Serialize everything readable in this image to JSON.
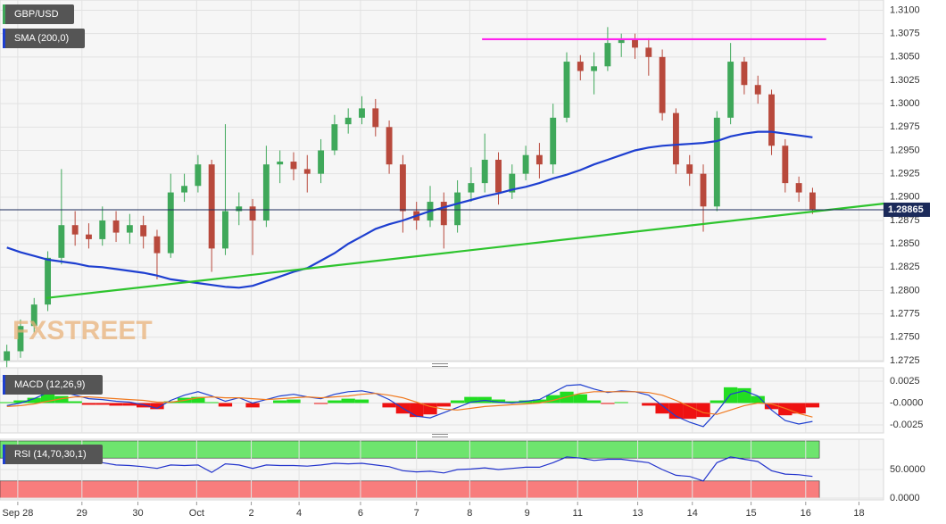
{
  "chart_data": [
    {
      "type": "candlestick",
      "title": "GBP/USD",
      "watermark": "FXSTREET",
      "up_color": "#3fa85a",
      "down_color": "#b8493c",
      "opens": [
        1.2725,
        1.2735,
        1.2762,
        1.2785,
        1.2835,
        1.287,
        1.286,
        1.2855,
        1.2875,
        1.2862,
        1.287,
        1.2858,
        1.284,
        1.2905,
        1.2912,
        1.2935,
        1.2845,
        1.2885,
        1.289,
        1.2875,
        1.2935,
        1.2938,
        1.293,
        1.2925,
        1.295,
        1.2978,
        1.2985,
        1.2995,
        1.2975,
        1.2935,
        1.2885,
        1.2875,
        1.2895,
        1.287,
        1.2905,
        1.2915,
        1.294,
        1.2905,
        1.2925,
        1.2945,
        1.2935,
        1.2985,
        1.3045,
        1.3035,
        1.304,
        1.3065,
        1.3068,
        1.306,
        1.305,
        1.299,
        1.2935,
        1.2925,
        1.289,
        1.2985,
        1.3045,
        1.302,
        1.301,
        1.2955,
        1.2915,
        1.2905
      ],
      "highs": [
        1.2742,
        1.2769,
        1.2792,
        1.2842,
        1.293,
        1.2885,
        1.2872,
        1.289,
        1.2885,
        1.2882,
        1.288,
        1.2865,
        1.2925,
        1.2925,
        1.2945,
        1.294,
        1.2978,
        1.2905,
        1.2898,
        1.2955,
        1.295,
        1.2948,
        1.2945,
        1.2962,
        1.2988,
        1.2995,
        1.3008,
        1.3005,
        1.2982,
        1.2945,
        1.2895,
        1.2912,
        1.2905,
        1.2918,
        1.2932,
        1.2968,
        1.2948,
        1.2935,
        1.2955,
        1.2958,
        1.3,
        1.3055,
        1.3052,
        1.3055,
        1.3082,
        1.3075,
        1.3075,
        1.307,
        1.3058,
        1.2995,
        1.2945,
        1.2935,
        1.2992,
        1.3065,
        1.305,
        1.303,
        1.3015,
        1.2962,
        1.2922,
        1.291
      ],
      "lows": [
        1.2718,
        1.2728,
        1.2755,
        1.2778,
        1.2828,
        1.2848,
        1.2845,
        1.2848,
        1.2852,
        1.285,
        1.2845,
        1.2812,
        1.2835,
        1.2895,
        1.2905,
        1.282,
        1.2838,
        1.287,
        1.2838,
        1.2868,
        1.2915,
        1.2918,
        1.2905,
        1.2915,
        1.2945,
        1.2968,
        1.2978,
        1.2965,
        1.2925,
        1.2862,
        1.2865,
        1.2868,
        1.2845,
        1.2862,
        1.2895,
        1.2905,
        1.2892,
        1.2898,
        1.2918,
        1.292,
        1.2925,
        1.298,
        1.3025,
        1.301,
        1.3035,
        1.305,
        1.3048,
        1.303,
        1.2982,
        1.2925,
        1.2912,
        1.2863,
        1.2885,
        1.2978,
        1.301,
        1.3,
        1.2945,
        1.2905,
        1.2895,
        1.2882
      ],
      "closes": [
        1.2735,
        1.2762,
        1.2785,
        1.2835,
        1.287,
        1.286,
        1.2855,
        1.2875,
        1.2862,
        1.287,
        1.2858,
        1.284,
        1.2905,
        1.2912,
        1.2935,
        1.2845,
        1.2885,
        1.289,
        1.2875,
        1.2935,
        1.2938,
        1.293,
        1.2925,
        1.295,
        1.2978,
        1.2985,
        1.2995,
        1.2975,
        1.2935,
        1.2885,
        1.2875,
        1.2895,
        1.287,
        1.2905,
        1.2915,
        1.294,
        1.2905,
        1.2925,
        1.2945,
        1.2935,
        1.2985,
        1.3045,
        1.3035,
        1.304,
        1.3065,
        1.3068,
        1.306,
        1.305,
        1.299,
        1.2935,
        1.2925,
        1.289,
        1.2985,
        1.3045,
        1.302,
        1.301,
        1.2955,
        1.2915,
        1.2905,
        1.2887
      ],
      "series": [
        {
          "name": "SMA (200,0)",
          "color": "#1e3fd0",
          "values": [
            1.2846,
            1.2841,
            1.2837,
            1.2833,
            1.2831,
            1.2829,
            1.2826,
            1.2825,
            1.2823,
            1.2821,
            1.2819,
            1.2816,
            1.2812,
            1.281,
            1.2808,
            1.2806,
            1.2804,
            1.2803,
            1.2805,
            1.281,
            1.2815,
            1.282,
            1.2824,
            1.2832,
            1.284,
            1.285,
            1.2858,
            1.2866,
            1.2871,
            1.2875,
            1.288,
            1.2885,
            1.2889,
            1.2893,
            1.2897,
            1.2901,
            1.2904,
            1.2908,
            1.2911,
            1.2915,
            1.292,
            1.2924,
            1.2929,
            1.2935,
            1.294,
            1.2945,
            1.295,
            1.2953,
            1.2955,
            1.2956,
            1.2957,
            1.2958,
            1.296,
            1.2965,
            1.2968,
            1.297,
            1.297,
            1.2968,
            1.2966,
            1.2964
          ]
        }
      ],
      "lines": [
        {
          "x": [
            3.4,
            64.7
          ],
          "y": [
            1.2792,
            1.2893
          ],
          "color": "#2ec42e"
        },
        {
          "x": [
            35.3,
            60.5
          ],
          "y": [
            1.3069,
            1.3069
          ],
          "color": "#ff22ee"
        }
      ],
      "last_price": 1.28865,
      "xlim": [
        0,
        64.7
      ],
      "ylim": [
        1.2724,
        1.3111
      ],
      "yticks": [
        {
          "value": 1.2725,
          "label": "1.2725"
        },
        {
          "value": 1.275,
          "label": "1.2750"
        },
        {
          "value": 1.2775,
          "label": "1.2775"
        },
        {
          "value": 1.28,
          "label": "1.2800"
        },
        {
          "value": 1.2825,
          "label": "1.2825"
        },
        {
          "value": 1.285,
          "label": "1.2850"
        },
        {
          "value": 1.2875,
          "label": "1.2875"
        },
        {
          "value": 1.29,
          "label": "1.2900"
        },
        {
          "value": 1.2925,
          "label": "1.2925"
        },
        {
          "value": 1.295,
          "label": "1.2950"
        },
        {
          "value": 1.2975,
          "label": "1.2975"
        },
        {
          "value": 1.3,
          "label": "1.3000"
        },
        {
          "value": 1.3025,
          "label": "1.3025"
        },
        {
          "value": 1.305,
          "label": "1.3050"
        },
        {
          "value": 1.3075,
          "label": "1.3075"
        },
        {
          "value": 1.31,
          "label": "1.3100"
        }
      ],
      "grid": true
    },
    {
      "type": "macd",
      "title": "MACD (12,26,9)",
      "histogram": {
        "up_color": "#22dd22",
        "down_color": "#ee1111",
        "values": [
          0.0001,
          0.0003,
          0.0006,
          0.001,
          0.0008,
          0.0002,
          -0.0002,
          -0.0002,
          -0.0003,
          -0.0003,
          -0.0005,
          -0.0007,
          0.0002,
          0.0006,
          0.0007,
          0.0001,
          -0.0004,
          0.0,
          -0.0005,
          0.0,
          0.0003,
          0.0004,
          0.0,
          -0.0001,
          0.0003,
          0.0005,
          0.0004,
          0.0,
          -0.0005,
          -0.0012,
          -0.0016,
          -0.0013,
          -0.0004,
          0.0003,
          0.0007,
          0.0007,
          0.0004,
          0.0002,
          0.0003,
          0.0004,
          0.0009,
          0.0013,
          0.001,
          0.0003,
          -0.0001,
          0.0001,
          0.0,
          -0.0003,
          -0.0012,
          -0.0018,
          -0.0018,
          -0.0016,
          0.0003,
          0.0018,
          0.0017,
          0.0008,
          -0.0007,
          -0.0014,
          -0.0012,
          -0.0005
        ]
      },
      "series": [
        {
          "color": "#1e3fd0",
          "values": [
            -0.0003,
            0.0,
            0.0005,
            0.0012,
            0.0013,
            0.0009,
            0.0005,
            0.0004,
            0.0002,
            0.0001,
            -0.0002,
            -0.0006,
            0.0003,
            0.0009,
            0.0013,
            0.0008,
            0.0002,
            0.0006,
            0.0,
            0.0004,
            0.0008,
            0.001,
            0.0007,
            0.0005,
            0.001,
            0.0013,
            0.0014,
            0.0011,
            0.0004,
            -0.0006,
            -0.0015,
            -0.0017,
            -0.0011,
            -0.0005,
            0.0001,
            0.0003,
            0.0001,
            0.0,
            0.0002,
            0.0004,
            0.0012,
            0.002,
            0.0021,
            0.0016,
            0.0012,
            0.0014,
            0.0013,
            0.0009,
            -0.0003,
            -0.0015,
            -0.0022,
            -0.0027,
            -0.001,
            0.001,
            0.0014,
            0.0008,
            -0.0008,
            -0.002,
            -0.0024,
            -0.0021
          ]
        },
        {
          "color": "#f07a20",
          "values": [
            -0.0004,
            -0.0003,
            -0.0001,
            0.0002,
            0.0005,
            0.0007,
            0.0007,
            0.0006,
            0.0005,
            0.0004,
            0.0003,
            0.0001,
            0.0001,
            0.0003,
            0.0006,
            0.0007,
            0.0006,
            0.0006,
            0.0005,
            0.0004,
            0.0005,
            0.0006,
            0.0007,
            0.0006,
            0.0007,
            0.0008,
            0.001,
            0.0011,
            0.0009,
            0.0006,
            0.0001,
            -0.0004,
            -0.0007,
            -0.0008,
            -0.0006,
            -0.0004,
            -0.0003,
            -0.0002,
            -0.0001,
            0.0,
            0.0003,
            0.0007,
            0.0011,
            0.0013,
            0.0013,
            0.0013,
            0.0013,
            0.0012,
            0.0009,
            0.0003,
            -0.0004,
            -0.0011,
            -0.0013,
            -0.0008,
            -0.0003,
            0.0,
            -0.0001,
            -0.0006,
            -0.0012,
            -0.0016
          ]
        }
      ],
      "xlim": [
        0,
        64.7
      ],
      "ylim": [
        -0.00342,
        0.00403
      ],
      "yticks": [
        {
          "value": -0.0025,
          "label": "-0.0025"
        },
        {
          "value": 0,
          "label": "-0.0000"
        },
        {
          "value": 0.0025,
          "label": "0.0025"
        }
      ],
      "grid": true
    },
    {
      "type": "line",
      "title": "RSI (14,70,30,1)",
      "bands": [
        {
          "from": 70,
          "to": 100,
          "color": "#6ee46e"
        },
        {
          "from": 0,
          "to": 30,
          "color": "#f87d7d"
        }
      ],
      "series": [
        {
          "color": "#2233cc",
          "values": [
            62,
            63,
            64,
            63,
            62,
            62,
            63,
            62,
            58,
            57,
            55,
            52,
            58,
            57,
            58,
            45,
            60,
            58,
            52,
            58,
            57,
            57,
            56,
            58,
            61,
            60,
            61,
            58,
            55,
            48,
            46,
            47,
            44,
            50,
            51,
            53,
            50,
            52,
            54,
            54,
            62,
            72,
            70,
            66,
            68,
            68,
            65,
            62,
            50,
            40,
            38,
            30,
            62,
            72,
            68,
            64,
            48,
            42,
            41,
            38
          ]
        }
      ],
      "xlim": [
        0,
        64.7
      ],
      "ylim": [
        -3.1,
        103.1
      ],
      "yticks": [
        {
          "value": 0,
          "label": "0.0000"
        },
        {
          "value": 50,
          "label": "50.0000"
        }
      ],
      "xticks": [
        {
          "value": 1.3,
          "label": "Sep 28"
        },
        {
          "value": 6.0,
          "label": "29"
        },
        {
          "value": 10.1,
          "label": "30"
        },
        {
          "value": 14.4,
          "label": "Oct"
        },
        {
          "value": 18.4,
          "label": "2"
        },
        {
          "value": 21.9,
          "label": "4"
        },
        {
          "value": 26.4,
          "label": "6"
        },
        {
          "value": 30.5,
          "label": "7"
        },
        {
          "value": 34.4,
          "label": "8"
        },
        {
          "value": 38.6,
          "label": "9"
        },
        {
          "value": 42.3,
          "label": "11"
        },
        {
          "value": 46.7,
          "label": "13"
        },
        {
          "value": 50.7,
          "label": "14"
        },
        {
          "value": 55.0,
          "label": "15"
        },
        {
          "value": 59.0,
          "label": "16"
        },
        {
          "value": 62.9,
          "label": "18"
        }
      ],
      "grid": true
    }
  ]
}
